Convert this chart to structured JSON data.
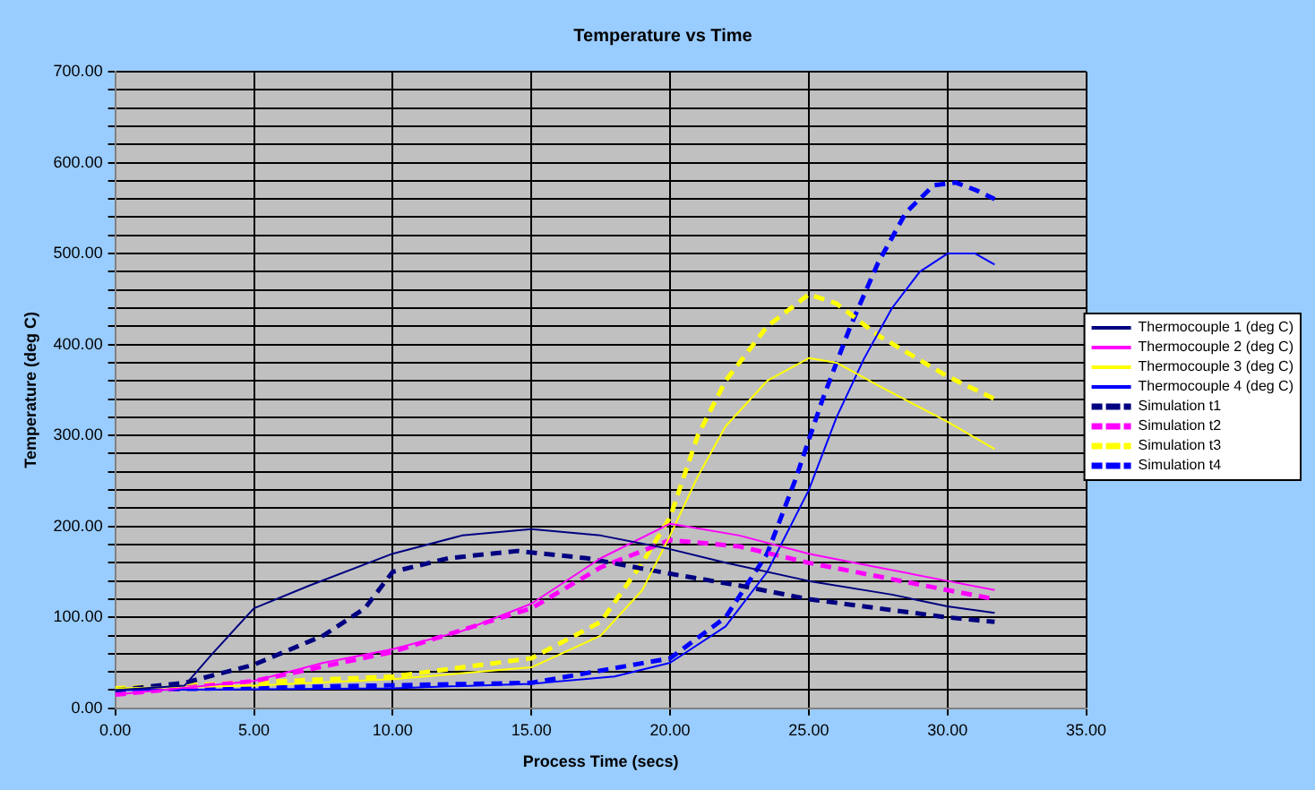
{
  "chart_data": {
    "type": "line",
    "title": "Temperature vs Time",
    "xlabel": "Process Time (secs)",
    "ylabel": "Temperature (deg C)",
    "xlim": [
      0,
      35
    ],
    "ylim": [
      0,
      700
    ],
    "xticks": [
      {
        "value": 0,
        "label": "0.00"
      },
      {
        "value": 5,
        "label": "5.00"
      },
      {
        "value": 10,
        "label": "10.00"
      },
      {
        "value": 15,
        "label": "15.00"
      },
      {
        "value": 20,
        "label": "20.00"
      },
      {
        "value": 25,
        "label": "25.00"
      },
      {
        "value": 30,
        "label": "30.00"
      },
      {
        "value": 35,
        "label": "35.00"
      }
    ],
    "yticks": [
      {
        "value": 0,
        "label": "0.00"
      },
      {
        "value": 20,
        "label": null
      },
      {
        "value": 40,
        "label": null
      },
      {
        "value": 60,
        "label": null
      },
      {
        "value": 80,
        "label": null
      },
      {
        "value": 100,
        "label": "100.00"
      },
      {
        "value": 120,
        "label": null
      },
      {
        "value": 140,
        "label": null
      },
      {
        "value": 160,
        "label": null
      },
      {
        "value": 180,
        "label": null
      },
      {
        "value": 200,
        "label": "200.00"
      },
      {
        "value": 220,
        "label": null
      },
      {
        "value": 240,
        "label": null
      },
      {
        "value": 260,
        "label": null
      },
      {
        "value": 280,
        "label": null
      },
      {
        "value": 300,
        "label": "300.00"
      },
      {
        "value": 320,
        "label": null
      },
      {
        "value": 340,
        "label": null
      },
      {
        "value": 360,
        "label": null
      },
      {
        "value": 380,
        "label": null
      },
      {
        "value": 400,
        "label": "400.00"
      },
      {
        "value": 420,
        "label": null
      },
      {
        "value": 440,
        "label": null
      },
      {
        "value": 460,
        "label": null
      },
      {
        "value": 480,
        "label": null
      },
      {
        "value": 500,
        "label": "500.00"
      },
      {
        "value": 520,
        "label": null
      },
      {
        "value": 540,
        "label": null
      },
      {
        "value": 560,
        "label": null
      },
      {
        "value": 580,
        "label": null
      },
      {
        "value": 600,
        "label": "600.00"
      },
      {
        "value": 620,
        "label": null
      },
      {
        "value": 640,
        "label": null
      },
      {
        "value": 660,
        "label": null
      },
      {
        "value": 680,
        "label": null
      },
      {
        "value": 700,
        "label": "700.00"
      }
    ],
    "grid": true,
    "legend": "right",
    "marker": "none",
    "series": [
      {
        "name": "Thermocouple 1 (deg C)",
        "color": "#000080",
        "line_style": "solid",
        "x": [
          0,
          2.5,
          3.5,
          5,
          7,
          10,
          12.5,
          15,
          17.5,
          20,
          22,
          25,
          28,
          30,
          31.7
        ],
        "values": [
          20,
          25,
          60,
          110,
          135,
          170,
          190,
          197,
          190,
          175,
          160,
          140,
          125,
          112,
          105
        ]
      },
      {
        "name": "Thermocouple 2 (deg C)",
        "color": "#ff00ff",
        "line_style": "solid",
        "x": [
          0,
          5,
          7.5,
          10,
          12.5,
          15,
          17.5,
          20,
          22.5,
          25,
          27.5,
          30,
          31.7
        ],
        "values": [
          15,
          30,
          50,
          65,
          85,
          115,
          165,
          203,
          190,
          170,
          155,
          140,
          130
        ]
      },
      {
        "name": "Thermocouple 3 (deg C)",
        "color": "#ffff00",
        "line_style": "solid",
        "x": [
          0,
          5,
          10,
          15,
          17.5,
          19,
          20,
          21,
          22,
          23.5,
          25,
          26,
          27.5,
          30,
          31.7
        ],
        "values": [
          22,
          25,
          32,
          45,
          80,
          130,
          190,
          255,
          310,
          360,
          385,
          380,
          355,
          315,
          285
        ]
      },
      {
        "name": "Thermocouple 4 (deg C)",
        "color": "#0000ff",
        "line_style": "solid",
        "x": [
          0,
          10,
          15,
          18,
          20,
          22,
          23.5,
          25,
          26,
          27,
          28,
          29,
          30,
          31,
          31.7
        ],
        "values": [
          20,
          22,
          27,
          35,
          50,
          90,
          150,
          240,
          320,
          385,
          440,
          480,
          500,
          500,
          488
        ]
      },
      {
        "name": "Simulation t1",
        "color": "#000080",
        "line_style": "dashed",
        "x": [
          0,
          2.5,
          5,
          7.5,
          9,
          10,
          12,
          14.5,
          17,
          20,
          22.5,
          25,
          27.5,
          30,
          31.7
        ],
        "values": [
          20,
          28,
          48,
          80,
          110,
          150,
          165,
          173,
          165,
          148,
          135,
          120,
          110,
          100,
          95
        ]
      },
      {
        "name": "Simulation t2",
        "color": "#ff00ff",
        "line_style": "dashed",
        "x": [
          0,
          5,
          10,
          15,
          17.5,
          20,
          22.5,
          25,
          27.5,
          30,
          31.7
        ],
        "values": [
          15,
          30,
          62,
          110,
          155,
          185,
          178,
          160,
          145,
          130,
          120
        ]
      },
      {
        "name": "Simulation t3",
        "color": "#ffff00",
        "line_style": "dashed",
        "x": [
          0,
          10,
          15,
          17.5,
          19,
          20,
          21,
          22,
          23.5,
          25,
          26,
          27.5,
          30,
          31.7
        ],
        "values": [
          22,
          35,
          55,
          95,
          160,
          210,
          300,
          360,
          420,
          455,
          445,
          410,
          365,
          340
        ]
      },
      {
        "name": "Simulation t4",
        "color": "#0000ff",
        "line_style": "dashed",
        "x": [
          0,
          15,
          20,
          22,
          23.5,
          24.5,
          25.5,
          26.5,
          27.5,
          28.5,
          29.5,
          30.3,
          31,
          31.7
        ],
        "values": [
          20,
          28,
          55,
          100,
          170,
          250,
          340,
          420,
          490,
          545,
          575,
          578,
          570,
          560
        ]
      }
    ]
  }
}
